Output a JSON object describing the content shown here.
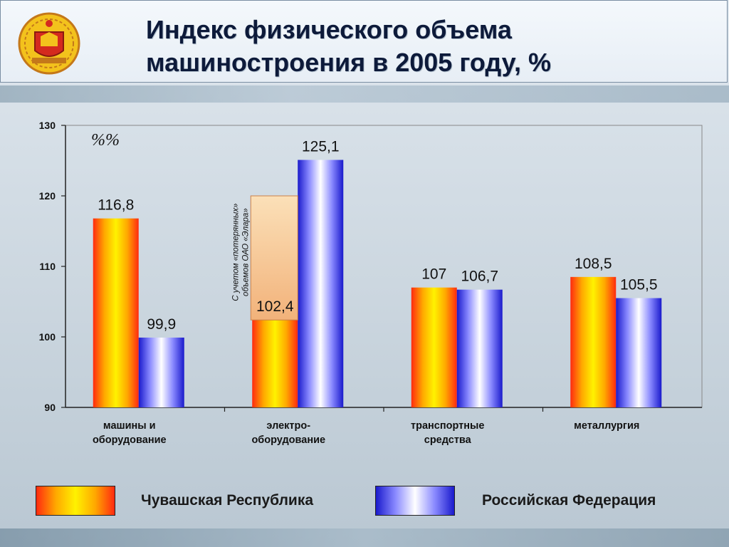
{
  "header": {
    "title_line1": "Индекс физического объема",
    "title_line2": "машиностроения в 2005 году, %"
  },
  "chart_data": {
    "type": "bar",
    "unit_label": "%%",
    "categories": [
      [
        "машины и",
        "оборудование"
      ],
      [
        "электро-",
        "оборудование"
      ],
      [
        "транспортные",
        "средства"
      ],
      [
        "металлургия"
      ]
    ],
    "series": [
      {
        "name": "Чувашская Республика",
        "values": [
          116.8,
          102.4,
          107,
          108.5
        ],
        "labels": [
          "116,8",
          "102,4",
          "107",
          "108,5"
        ]
      },
      {
        "name": "Российская Федерация",
        "values": [
          99.9,
          125.1,
          106.7,
          105.5
        ],
        "labels": [
          "99,9",
          "125,1",
          "106,7",
          "105,5"
        ]
      }
    ],
    "annotation": {
      "category_index": 1,
      "value": 120,
      "text_line1": "С учетом «потерянных»",
      "text_line2": "объемов ОАО «Элара»"
    },
    "ylim": [
      90,
      130
    ],
    "yticks": [
      90,
      100,
      110,
      120,
      130
    ],
    "grid": false,
    "legend": "bottom"
  },
  "colors": {
    "series1_gradient": [
      "#ff2a10",
      "#ffa800",
      "#fff200",
      "#ffa800",
      "#ff2a10"
    ],
    "series2_gradient": [
      "#1a1acc",
      "#8a8aff",
      "#ffffff",
      "#8a8aff",
      "#1a1acc"
    ]
  },
  "icons": {
    "emblem": "chuvash-coat-of-arms-icon"
  }
}
